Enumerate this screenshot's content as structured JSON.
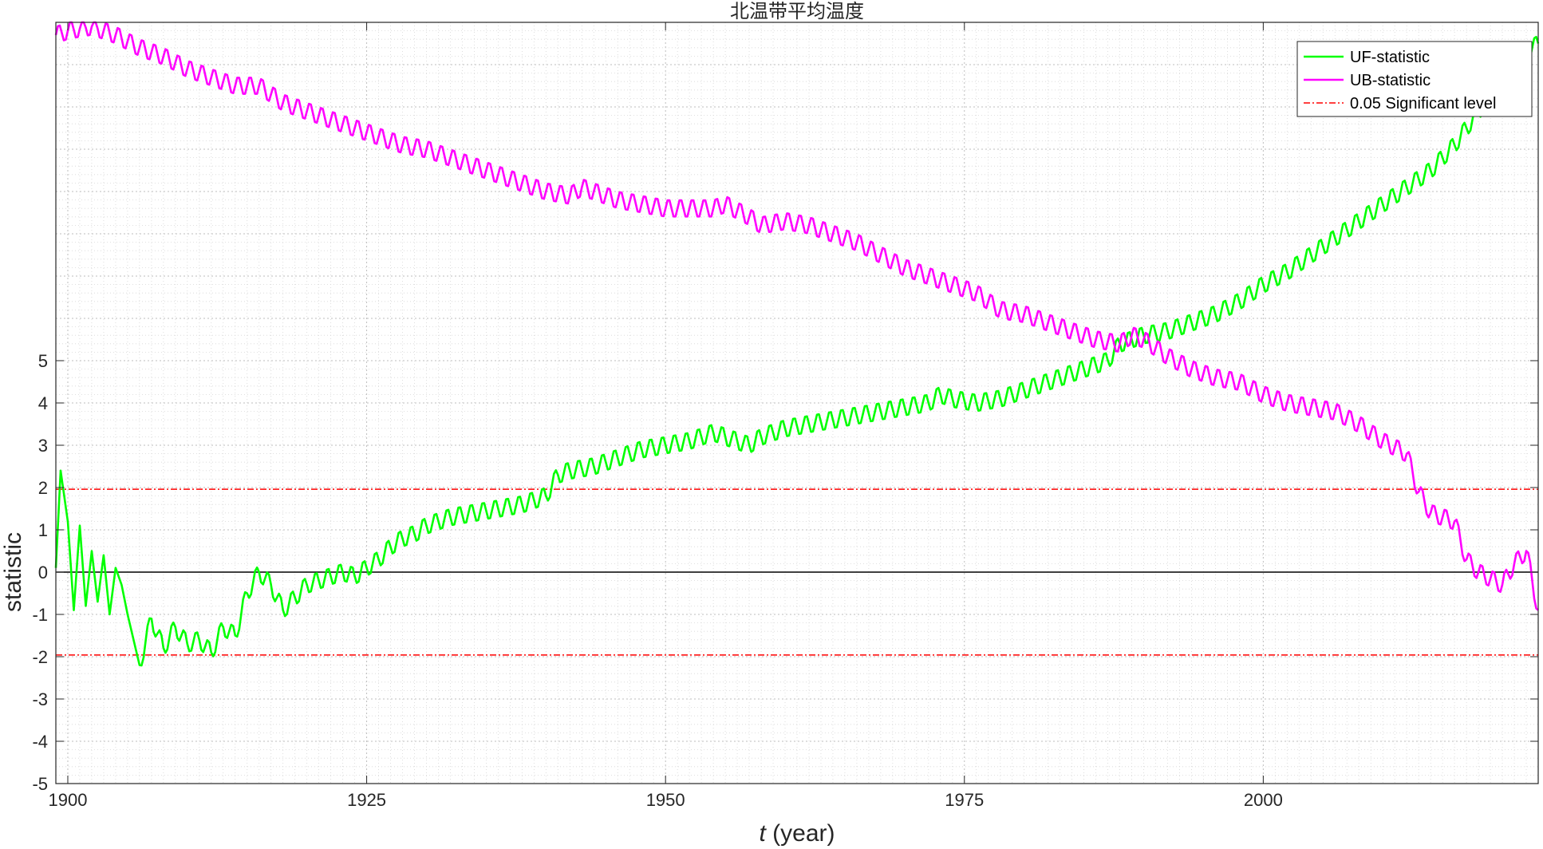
{
  "chart_data": {
    "type": "line",
    "title": "北温带平均温度",
    "xlabel_italic": "t",
    "xlabel_rest": " (year)",
    "ylabel": "statistic",
    "xlim": [
      1899,
      2023
    ],
    "ylim": [
      -5,
      13
    ],
    "x_ticks": [
      {
        "value": 1900,
        "label": "1900"
      },
      {
        "value": 1925,
        "label": "1925"
      },
      {
        "value": 1950,
        "label": "1950"
      },
      {
        "value": 1975,
        "label": "1975"
      },
      {
        "value": 2000,
        "label": "2000"
      }
    ],
    "y_ticks": [
      {
        "value": -5,
        "label": "-5"
      },
      {
        "value": -4,
        "label": "-4"
      },
      {
        "value": -3,
        "label": "-3"
      },
      {
        "value": -2,
        "label": "-2"
      },
      {
        "value": -1,
        "label": "-1"
      },
      {
        "value": 0,
        "label": "0"
      },
      {
        "value": 1,
        "label": "1"
      },
      {
        "value": 2,
        "label": "2"
      },
      {
        "value": 3,
        "label": "3"
      },
      {
        "value": 4,
        "label": "4"
      },
      {
        "value": 5,
        "label": "5"
      }
    ],
    "grid": true,
    "minor_grid": true,
    "legend_position": "top-right",
    "zero_line": 0,
    "significance_level": 1.96,
    "series": [
      {
        "name": "UF-statistic",
        "color": "#00ff00",
        "x": [
          1899,
          1899.4,
          1900,
          1900.5,
          1901,
          1901.5,
          1902,
          1902.5,
          1903,
          1903.5,
          1904,
          1904.5,
          1905,
          1906,
          1907,
          1908,
          1909,
          1910,
          1911,
          1912,
          1913,
          1914,
          1915,
          1916,
          1917,
          1918,
          1919,
          1920,
          1921,
          1922,
          1923,
          1924,
          1925,
          1926,
          1927,
          1928,
          1929,
          1930,
          1932,
          1934,
          1936,
          1938,
          1940,
          1941,
          1942,
          1944,
          1946,
          1948,
          1950,
          1952,
          1954,
          1956,
          1957,
          1958,
          1960,
          1962,
          1964,
          1966,
          1968,
          1970,
          1972,
          1973,
          1974,
          1976,
          1978,
          1980,
          1982,
          1984,
          1986,
          1987,
          1988,
          1990,
          1992,
          1994,
          1996,
          1998,
          2000,
          2002,
          2004,
          2006,
          2008,
          2010,
          2012,
          2014,
          2016,
          2018,
          2020,
          2022,
          2023
        ],
        "values": [
          0.1,
          2.4,
          1.2,
          -0.9,
          1.1,
          -0.8,
          0.5,
          -0.7,
          0.4,
          -1.0,
          0.1,
          -0.3,
          -1.0,
          -2.2,
          -1.1,
          -1.8,
          -1.3,
          -1.7,
          -1.6,
          -1.9,
          -1.3,
          -1.5,
          -0.5,
          0.0,
          -0.3,
          -0.9,
          -0.6,
          -0.3,
          -0.2,
          -0.1,
          0.0,
          -0.1,
          0.1,
          0.3,
          0.6,
          0.8,
          0.9,
          1.1,
          1.3,
          1.4,
          1.5,
          1.6,
          1.8,
          2.3,
          2.4,
          2.5,
          2.7,
          2.9,
          3.0,
          3.1,
          3.3,
          3.1,
          3.0,
          3.2,
          3.4,
          3.5,
          3.6,
          3.7,
          3.8,
          3.9,
          4.0,
          4.2,
          4.1,
          4.0,
          4.1,
          4.3,
          4.5,
          4.7,
          4.9,
          5.0,
          5.4,
          5.6,
          5.7,
          5.9,
          6.1,
          6.4,
          6.8,
          7.1,
          7.5,
          7.9,
          8.3,
          8.7,
          9.1,
          9.5,
          10.1,
          10.9,
          11.6,
          12.3,
          12.5
        ]
      },
      {
        "name": "UB-statistic",
        "color": "#ff00ff",
        "x": [
          1899,
          1900,
          1902,
          1904,
          1906,
          1908,
          1910,
          1912,
          1914,
          1916,
          1918,
          1920,
          1922,
          1924,
          1926,
          1928,
          1930,
          1932,
          1934,
          1936,
          1938,
          1940,
          1942,
          1943,
          1946,
          1948,
          1950,
          1952,
          1954,
          1955,
          1957,
          1958,
          1960,
          1962,
          1964,
          1966,
          1968,
          1970,
          1972,
          1974,
          1976,
          1978,
          1980,
          1982,
          1984,
          1986,
          1988,
          1989,
          1990,
          1992,
          1994,
          1996,
          1998,
          2000,
          2002,
          2004,
          2006,
          2008,
          2010,
          2012,
          2013,
          2014,
          2016,
          2017,
          2018,
          2020,
          2021,
          2022,
          2023
        ],
        "values": [
          12.7,
          12.8,
          12.9,
          12.7,
          12.4,
          12.2,
          11.9,
          11.7,
          11.5,
          11.5,
          11.1,
          10.9,
          10.7,
          10.5,
          10.3,
          10.1,
          10.0,
          9.8,
          9.6,
          9.4,
          9.2,
          9.0,
          8.9,
          9.1,
          8.8,
          8.7,
          8.6,
          8.6,
          8.6,
          8.7,
          8.4,
          8.2,
          8.3,
          8.2,
          8.0,
          7.8,
          7.5,
          7.2,
          7.0,
          6.8,
          6.6,
          6.2,
          6.1,
          5.9,
          5.7,
          5.5,
          5.4,
          5.6,
          5.5,
          5.1,
          4.8,
          4.6,
          4.5,
          4.2,
          4.0,
          3.9,
          3.8,
          3.5,
          3.1,
          2.8,
          1.9,
          1.4,
          1.2,
          0.3,
          0.0,
          -0.3,
          0.2,
          0.5,
          -0.9
        ]
      }
    ],
    "reference_lines": [
      {
        "name": "0.05 Significant level",
        "color": "#ff0000",
        "style": "dash-dot",
        "values": [
          1.96,
          -1.96
        ]
      }
    ]
  }
}
